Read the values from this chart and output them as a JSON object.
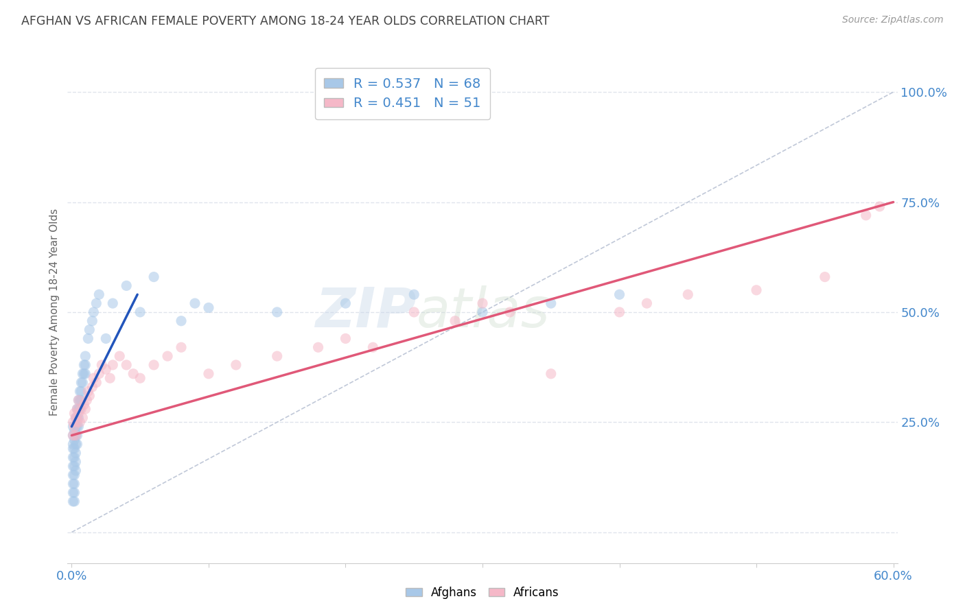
{
  "title": "AFGHAN VS AFRICAN FEMALE POVERTY AMONG 18-24 YEAR OLDS CORRELATION CHART",
  "source": "Source: ZipAtlas.com",
  "ylabel": "Female Poverty Among 18-24 Year Olds",
  "xlim": [
    -0.003,
    0.603
  ],
  "ylim": [
    -0.07,
    1.07
  ],
  "xticks": [
    0.0,
    0.1,
    0.2,
    0.3,
    0.4,
    0.5,
    0.6
  ],
  "xticklabels": [
    "0.0%",
    "",
    "",
    "",
    "",
    "",
    "60.0%"
  ],
  "ytick_positions": [
    0.0,
    0.25,
    0.5,
    0.75,
    1.0
  ],
  "ytick_labels": [
    "",
    "25.0%",
    "50.0%",
    "75.0%",
    "100.0%"
  ],
  "blue_color": "#a8c8e8",
  "pink_color": "#f5b8c8",
  "blue_line_color": "#2255bb",
  "pink_line_color": "#e05878",
  "ref_line_color": "#c0c8d8",
  "legend_r_blue": "R = 0.537",
  "legend_n_blue": "N = 68",
  "legend_r_pink": "R = 0.451",
  "legend_n_pink": "N = 51",
  "watermark_zip": "ZIP",
  "watermark_atlas": "atlas",
  "afghans_x": [
    0.001,
    0.001,
    0.001,
    0.001,
    0.001,
    0.001,
    0.001,
    0.001,
    0.001,
    0.001,
    0.002,
    0.002,
    0.002,
    0.002,
    0.002,
    0.002,
    0.002,
    0.002,
    0.002,
    0.003,
    0.003,
    0.003,
    0.003,
    0.003,
    0.003,
    0.003,
    0.004,
    0.004,
    0.004,
    0.004,
    0.004,
    0.005,
    0.005,
    0.005,
    0.005,
    0.006,
    0.006,
    0.006,
    0.007,
    0.007,
    0.007,
    0.008,
    0.008,
    0.009,
    0.009,
    0.01,
    0.01,
    0.01,
    0.012,
    0.013,
    0.015,
    0.016,
    0.018,
    0.02,
    0.025,
    0.03,
    0.04,
    0.05,
    0.06,
    0.08,
    0.09,
    0.1,
    0.15,
    0.2,
    0.25,
    0.3,
    0.35,
    0.4
  ],
  "afghans_y": [
    0.2,
    0.22,
    0.24,
    0.19,
    0.17,
    0.15,
    0.13,
    0.11,
    0.09,
    0.07,
    0.23,
    0.21,
    0.19,
    0.17,
    0.15,
    0.13,
    0.11,
    0.09,
    0.07,
    0.26,
    0.24,
    0.22,
    0.2,
    0.18,
    0.16,
    0.14,
    0.28,
    0.26,
    0.24,
    0.22,
    0.2,
    0.3,
    0.28,
    0.26,
    0.24,
    0.32,
    0.3,
    0.28,
    0.34,
    0.32,
    0.3,
    0.36,
    0.34,
    0.38,
    0.36,
    0.4,
    0.38,
    0.36,
    0.44,
    0.46,
    0.48,
    0.5,
    0.52,
    0.54,
    0.44,
    0.52,
    0.56,
    0.5,
    0.58,
    0.48,
    0.52,
    0.51,
    0.5,
    0.52,
    0.54,
    0.5,
    0.52,
    0.54
  ],
  "africans_x": [
    0.001,
    0.001,
    0.002,
    0.002,
    0.003,
    0.003,
    0.004,
    0.004,
    0.005,
    0.005,
    0.006,
    0.007,
    0.008,
    0.009,
    0.01,
    0.011,
    0.012,
    0.013,
    0.015,
    0.016,
    0.018,
    0.02,
    0.022,
    0.025,
    0.028,
    0.03,
    0.035,
    0.04,
    0.045,
    0.05,
    0.06,
    0.07,
    0.08,
    0.1,
    0.12,
    0.15,
    0.18,
    0.2,
    0.22,
    0.25,
    0.28,
    0.3,
    0.32,
    0.35,
    0.4,
    0.42,
    0.45,
    0.5,
    0.55,
    0.58,
    0.59
  ],
  "africans_y": [
    0.25,
    0.22,
    0.27,
    0.24,
    0.26,
    0.22,
    0.28,
    0.25,
    0.3,
    0.27,
    0.25,
    0.28,
    0.26,
    0.29,
    0.28,
    0.3,
    0.32,
    0.31,
    0.33,
    0.35,
    0.34,
    0.36,
    0.38,
    0.37,
    0.35,
    0.38,
    0.4,
    0.38,
    0.36,
    0.35,
    0.38,
    0.4,
    0.42,
    0.36,
    0.38,
    0.4,
    0.42,
    0.44,
    0.42,
    0.5,
    0.48,
    0.52,
    0.5,
    0.36,
    0.5,
    0.52,
    0.54,
    0.55,
    0.58,
    0.72,
    0.74
  ],
  "blue_trend_x": [
    0.0,
    0.048
  ],
  "blue_trend_y": [
    0.24,
    0.54
  ],
  "pink_trend_x": [
    0.0,
    0.6
  ],
  "pink_trend_y": [
    0.22,
    0.75
  ],
  "ref_line_x": [
    0.0,
    0.6
  ],
  "ref_line_y": [
    0.0,
    1.0
  ],
  "background_color": "#ffffff",
  "grid_color": "#e0e4ec",
  "title_color": "#444444",
  "axis_label_color": "#666666",
  "tick_label_color_blue": "#4488cc",
  "source_color": "#999999"
}
